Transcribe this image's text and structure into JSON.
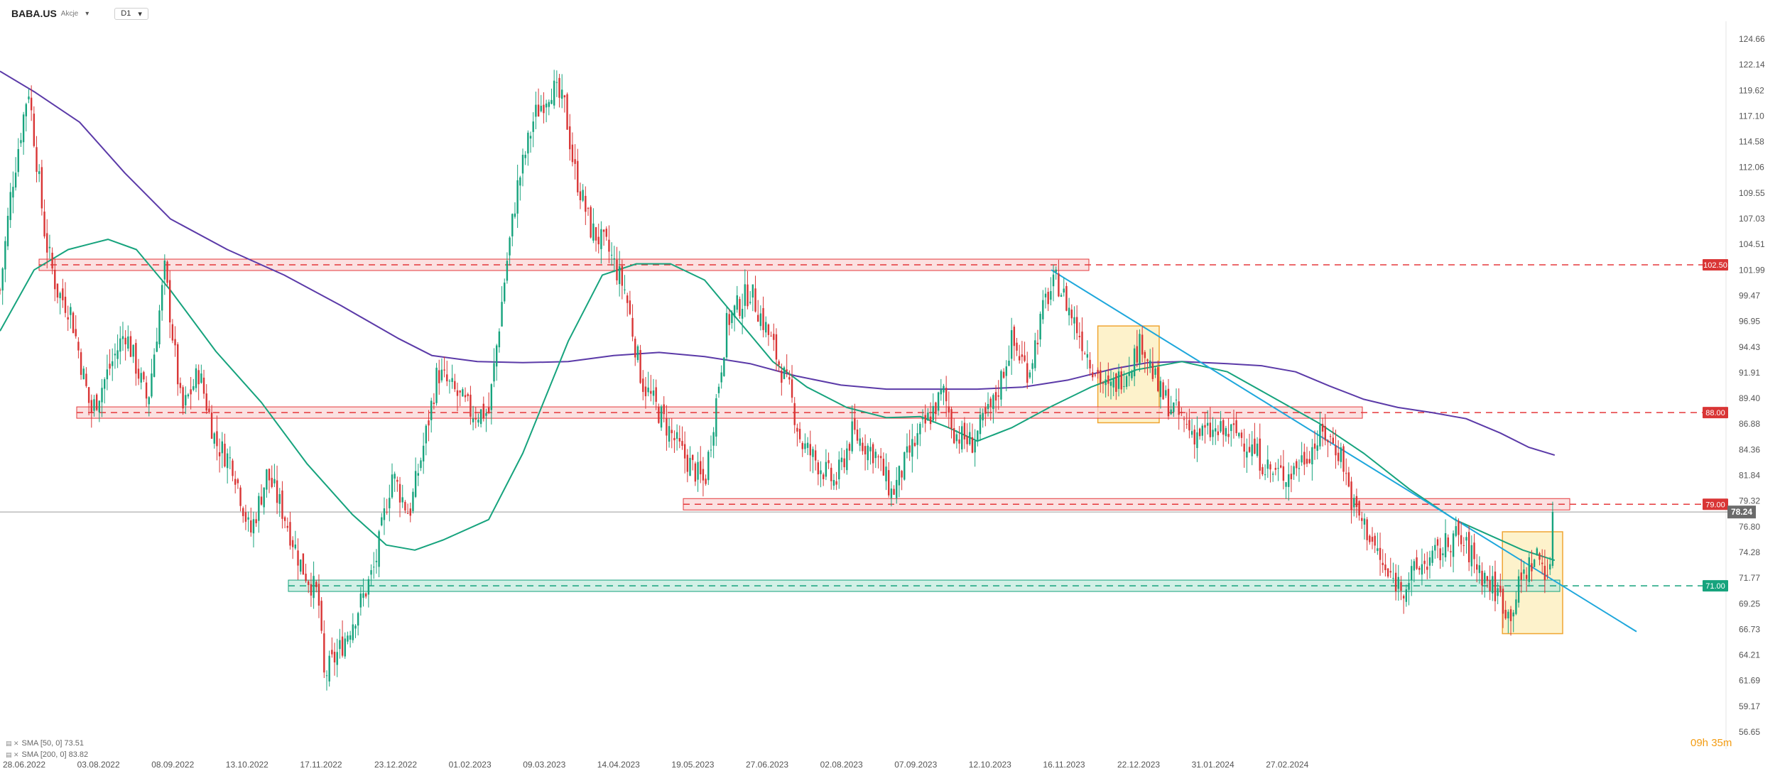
{
  "header": {
    "symbol": "BABA.US",
    "symbol_type": "Akcje",
    "timeframe": "D1",
    "caret": "▾"
  },
  "legend": [
    {
      "label": "SMA [50, 0] 73.51",
      "color": "#16a37d"
    },
    {
      "label": "SMA [200, 0] 83.82",
      "color": "#5b3aa8"
    }
  ],
  "timer": "09h 35m",
  "chart_data": {
    "type": "candlestick",
    "title": "",
    "y_ticks": [
      "124.66",
      "122.14",
      "119.62",
      "117.10",
      "114.58",
      "112.06",
      "109.55",
      "107.03",
      "104.51",
      "101.99",
      "99.47",
      "96.95",
      "94.43",
      "91.91",
      "89.40",
      "86.88",
      "84.36",
      "81.84",
      "79.32",
      "76.80",
      "74.28",
      "71.77",
      "69.25",
      "66.73",
      "64.21",
      "61.69",
      "59.17",
      "56.65"
    ],
    "x_ticks": [
      "28.06.2022",
      "03.08.2022",
      "08.09.2022",
      "13.10.2022",
      "17.11.2022",
      "23.12.2022",
      "01.02.2023",
      "09.03.2023",
      "14.04.2023",
      "19.05.2023",
      "27.06.2023",
      "02.08.2023",
      "07.09.2023",
      "12.10.2023",
      "16.11.2023",
      "22.12.2023",
      "31.01.2024",
      "27.02.2024"
    ],
    "ylim": [
      56.65,
      124.66
    ],
    "current_price": "78.24",
    "price_levels": [
      {
        "label": "102.50",
        "value": 102.5,
        "type": "resistance"
      },
      {
        "label": "88.00",
        "value": 88.0,
        "type": "resistance"
      },
      {
        "label": "79.00",
        "value": 79.0,
        "type": "resistance"
      },
      {
        "label": "71.00",
        "value": 71.0,
        "type": "support"
      }
    ],
    "ohlc_points": [
      [
        0,
        100
      ],
      [
        10,
        110
      ],
      [
        25,
        120
      ],
      [
        40,
        105
      ],
      [
        50,
        100
      ],
      [
        62,
        98
      ],
      [
        80,
        88
      ],
      [
        95,
        92
      ],
      [
        110,
        96
      ],
      [
        130,
        89
      ],
      [
        145,
        102
      ],
      [
        160,
        88
      ],
      [
        175,
        92
      ],
      [
        190,
        85
      ],
      [
        205,
        83
      ],
      [
        220,
        76
      ],
      [
        235,
        82
      ],
      [
        250,
        78
      ],
      [
        265,
        73
      ],
      [
        280,
        70
      ],
      [
        285,
        62
      ],
      [
        300,
        65
      ],
      [
        320,
        70
      ],
      [
        330,
        73
      ],
      [
        345,
        82
      ],
      [
        360,
        78
      ],
      [
        375,
        86
      ],
      [
        385,
        92
      ],
      [
        400,
        90
      ],
      [
        415,
        88
      ],
      [
        430,
        88
      ],
      [
        445,
        102
      ],
      [
        455,
        110
      ],
      [
        470,
        117
      ],
      [
        485,
        120
      ],
      [
        497,
        118
      ],
      [
        505,
        112
      ],
      [
        520,
        106
      ],
      [
        535,
        104
      ],
      [
        550,
        100
      ],
      [
        565,
        91
      ],
      [
        580,
        88
      ],
      [
        600,
        84
      ],
      [
        620,
        81
      ],
      [
        640,
        97
      ],
      [
        660,
        100
      ],
      [
        675,
        96
      ],
      [
        695,
        90
      ],
      [
        705,
        85
      ],
      [
        720,
        83
      ],
      [
        735,
        81
      ],
      [
        750,
        86
      ],
      [
        770,
        84
      ],
      [
        785,
        80
      ],
      [
        800,
        84
      ],
      [
        815,
        87
      ],
      [
        830,
        90
      ],
      [
        840,
        86
      ],
      [
        855,
        85
      ],
      [
        875,
        89
      ],
      [
        890,
        95
      ],
      [
        905,
        92
      ],
      [
        920,
        99
      ],
      [
        930,
        101
      ],
      [
        945,
        97
      ],
      [
        960,
        93
      ],
      [
        975,
        90
      ],
      [
        990,
        92
      ],
      [
        1005,
        95
      ],
      [
        1020,
        90
      ],
      [
        1035,
        88
      ],
      [
        1050,
        86
      ],
      [
        1070,
        86
      ],
      [
        1090,
        86
      ],
      [
        1105,
        84
      ],
      [
        1120,
        82
      ],
      [
        1135,
        82
      ],
      [
        1150,
        84
      ],
      [
        1165,
        86
      ],
      [
        1180,
        84
      ],
      [
        1190,
        79
      ],
      [
        1205,
        76
      ],
      [
        1220,
        72
      ],
      [
        1235,
        71
      ],
      [
        1250,
        73
      ],
      [
        1265,
        74
      ],
      [
        1280,
        76
      ],
      [
        1295,
        74
      ],
      [
        1305,
        72
      ],
      [
        1320,
        70
      ],
      [
        1328,
        68
      ],
      [
        1340,
        72
      ],
      [
        1352,
        74
      ],
      [
        1364,
        72
      ],
      [
        1368,
        78.24
      ]
    ],
    "sma50": [
      [
        0,
        96
      ],
      [
        30,
        102
      ],
      [
        60,
        104
      ],
      [
        95,
        105
      ],
      [
        120,
        104
      ],
      [
        150,
        100
      ],
      [
        190,
        94
      ],
      [
        230,
        89
      ],
      [
        270,
        83
      ],
      [
        310,
        78
      ],
      [
        340,
        75
      ],
      [
        365,
        74.5
      ],
      [
        390,
        75.5
      ],
      [
        430,
        77.5
      ],
      [
        460,
        84
      ],
      [
        500,
        95
      ],
      [
        530,
        101.5
      ],
      [
        560,
        102.6
      ],
      [
        590,
        102.6
      ],
      [
        620,
        101
      ],
      [
        650,
        97
      ],
      [
        680,
        93
      ],
      [
        710,
        90.5
      ],
      [
        745,
        88.5
      ],
      [
        780,
        87.5
      ],
      [
        810,
        87.6
      ],
      [
        835,
        86.5
      ],
      [
        860,
        85.2
      ],
      [
        890,
        86.5
      ],
      [
        925,
        88.6
      ],
      [
        960,
        90.5
      ],
      [
        1000,
        92.2
      ],
      [
        1040,
        93
      ],
      [
        1080,
        92
      ],
      [
        1120,
        89.5
      ],
      [
        1160,
        87
      ],
      [
        1200,
        84
      ],
      [
        1240,
        80.5
      ],
      [
        1280,
        77.5
      ],
      [
        1310,
        76
      ],
      [
        1340,
        74.5
      ],
      [
        1368,
        73.5
      ]
    ],
    "sma200": [
      [
        0,
        121.5
      ],
      [
        30,
        119.5
      ],
      [
        70,
        116.5
      ],
      [
        110,
        111.5
      ],
      [
        150,
        107
      ],
      [
        200,
        104
      ],
      [
        250,
        101.5
      ],
      [
        300,
        98.5
      ],
      [
        350,
        95.3
      ],
      [
        380,
        93.6
      ],
      [
        420,
        93
      ],
      [
        460,
        92.9
      ],
      [
        500,
        93
      ],
      [
        540,
        93.6
      ],
      [
        580,
        93.9
      ],
      [
        620,
        93.5
      ],
      [
        660,
        92.8
      ],
      [
        700,
        91.6
      ],
      [
        740,
        90.7
      ],
      [
        780,
        90.3
      ],
      [
        820,
        90.3
      ],
      [
        860,
        90.3
      ],
      [
        900,
        90.5
      ],
      [
        940,
        91.2
      ],
      [
        980,
        92.3
      ],
      [
        1010,
        92.9
      ],
      [
        1040,
        93
      ],
      [
        1080,
        92.8
      ],
      [
        1110,
        92.6
      ],
      [
        1140,
        92
      ],
      [
        1170,
        90.6
      ],
      [
        1200,
        89.3
      ],
      [
        1230,
        88.5
      ],
      [
        1260,
        88
      ],
      [
        1290,
        87.4
      ],
      [
        1320,
        86
      ],
      [
        1345,
        84.6
      ],
      [
        1368,
        83.82
      ]
    ],
    "trendline": [
      [
        925,
        102
      ],
      [
        1440,
        66.5
      ]
    ],
    "zones": [
      {
        "name": "zone-2023-08",
        "x0": 966,
        "x1": 1020,
        "y0": 87,
        "y1": 96.5
      },
      {
        "name": "zone-2024-01",
        "x0": 1322,
        "x1": 1375,
        "y0": 66.3,
        "y1": 76.3
      }
    ]
  }
}
